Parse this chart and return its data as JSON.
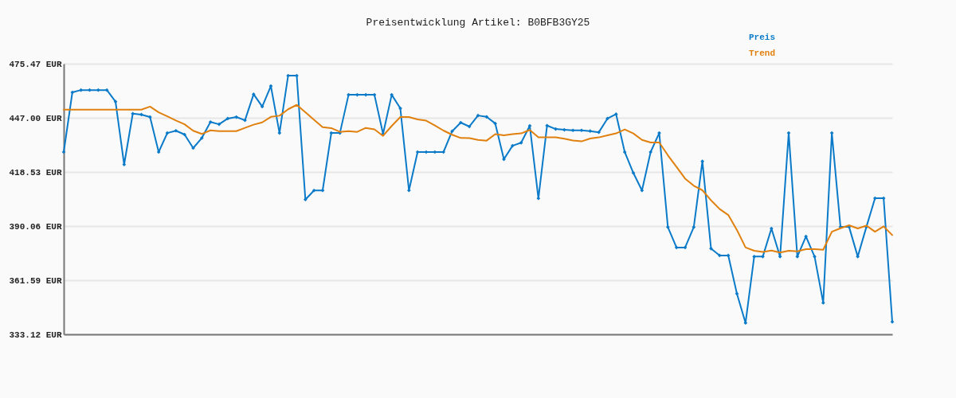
{
  "chart_data": {
    "type": "line",
    "title": "Preisentwicklung Artikel: B0BFB3GY25",
    "categories": [
      null,
      null,
      null,
      null,
      null,
      null,
      null,
      null,
      null,
      null,
      null,
      null,
      null,
      null,
      null,
      null,
      null,
      null,
      null,
      null,
      null,
      null,
      null,
      null,
      null,
      null,
      null,
      null,
      null,
      null,
      null,
      null,
      null,
      null,
      null,
      null,
      null,
      null,
      null,
      null,
      null,
      null,
      null,
      null,
      null,
      null,
      null,
      null,
      null,
      null,
      null,
      null,
      null,
      null,
      null,
      null,
      null,
      null,
      null,
      null,
      null,
      null,
      null,
      null,
      null,
      null,
      null,
      null,
      null,
      null,
      null,
      null,
      null,
      null,
      null,
      null,
      null,
      null,
      null,
      null,
      null,
      null,
      null,
      null,
      null,
      null,
      null,
      null,
      null,
      null,
      null,
      null,
      null,
      null,
      null,
      null,
      null
    ],
    "series": [
      {
        "name": "Preis",
        "color": "#0b7bc9",
        "marker": "diamond",
        "values": [
          429.0,
          460.4,
          461.6,
          461.6,
          461.6,
          461.6,
          455.5,
          422.4,
          449.2,
          448.7,
          447.4,
          429.0,
          439.0,
          440.2,
          438.2,
          431.1,
          436.4,
          444.8,
          443.6,
          446.6,
          447.4,
          445.7,
          459.4,
          452.9,
          463.7,
          439.0,
          469.2,
          469.2,
          404.0,
          408.8,
          408.8,
          439.0,
          439.0,
          459.1,
          459.1,
          459.1,
          459.1,
          438.5,
          459.1,
          452.0,
          408.8,
          429.0,
          429.0,
          429.0,
          429.0,
          439.9,
          444.5,
          442.4,
          448.2,
          447.5,
          444.0,
          425.2,
          432.3,
          433.9,
          442.8,
          404.6,
          442.9,
          441.1,
          440.7,
          440.4,
          440.4,
          440.0,
          439.4,
          446.6,
          448.9,
          429.0,
          418.0,
          408.8,
          429.0,
          439.0,
          389.5,
          378.8,
          378.8,
          389.5,
          424.1,
          378.2,
          374.6,
          374.6,
          354.5,
          339.1,
          374.0,
          374.0,
          388.8,
          374.0,
          439.0,
          374.0,
          384.6,
          374.0,
          349.7,
          439.0,
          389.6,
          389.6,
          374.0,
          389.6,
          404.7,
          404.7,
          339.7
        ]
      },
      {
        "name": "Trend",
        "color": "#e0800e",
        "marker": "none",
        "values": [
          451.3,
          451.3,
          451.3,
          451.3,
          451.3,
          451.3,
          451.3,
          451.3,
          451.3,
          451.3,
          452.9,
          449.9,
          447.8,
          445.6,
          443.6,
          440.2,
          438.5,
          440.4,
          440.0,
          440.0,
          440.0,
          441.7,
          443.4,
          444.6,
          447.5,
          448.1,
          451.5,
          453.8,
          449.9,
          446.0,
          442.1,
          441.6,
          439.6,
          440.0,
          439.6,
          441.7,
          440.9,
          437.5,
          442.7,
          447.4,
          447.4,
          446.2,
          445.5,
          443.0,
          440.3,
          438.1,
          436.4,
          436.3,
          435.4,
          435.0,
          438.4,
          437.8,
          438.4,
          438.8,
          440.6,
          436.7,
          436.7,
          436.7,
          436.0,
          435.1,
          434.6,
          436.1,
          436.7,
          437.8,
          438.8,
          440.9,
          438.8,
          435.4,
          434.0,
          434.0,
          427.3,
          421.2,
          415.0,
          411.3,
          408.9,
          403.6,
          399.0,
          395.9,
          388.0,
          378.8,
          377.1,
          376.5,
          377.2,
          376.1,
          377.1,
          376.8,
          377.9,
          377.9,
          377.6,
          387.1,
          388.9,
          390.5,
          388.8,
          390.3,
          387.1,
          389.9,
          385.3
        ]
      }
    ],
    "ylim": [
      333.12,
      475.47
    ],
    "yticks": [
      {
        "value": 333.12,
        "label": "333.12 EUR"
      },
      {
        "value": 361.59,
        "label": "361.59 EUR"
      },
      {
        "value": 390.06,
        "label": "390.06 EUR"
      },
      {
        "value": 418.53,
        "label": "418.53 EUR"
      },
      {
        "value": 447.0,
        "label": "447.00 EUR"
      },
      {
        "value": 475.47,
        "label": "475.47 EUR"
      }
    ],
    "grid": "y",
    "legend": "top right",
    "tick_labels": "y",
    "line_style": "solid"
  }
}
